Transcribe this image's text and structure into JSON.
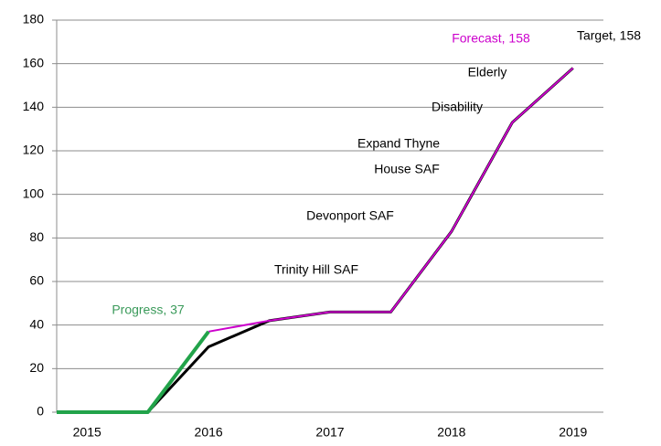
{
  "chart_data": {
    "type": "line",
    "x": [
      2014.75,
      2015.5,
      2016,
      2016.5,
      2017,
      2017.5,
      2018,
      2018.5,
      2019
    ],
    "series": [
      {
        "name": "Target",
        "color": "#000000",
        "values": [
          0,
          0,
          30,
          42,
          46,
          46,
          83,
          133,
          158
        ]
      },
      {
        "name": "Forecast",
        "color": "#cc00cc",
        "values": [
          null,
          null,
          37,
          42,
          46,
          46,
          83,
          133,
          158
        ]
      },
      {
        "name": "Progress",
        "color": "#22a34a",
        "values": [
          0,
          0,
          37,
          null,
          null,
          null,
          null,
          null,
          null
        ]
      }
    ],
    "xlim": [
      2014.75,
      2019.25
    ],
    "xticks": [
      2015,
      2016,
      2017,
      2018,
      2019
    ],
    "ylim": [
      0,
      180
    ],
    "yticks": [
      0,
      20,
      40,
      60,
      80,
      100,
      120,
      140,
      160,
      180
    ],
    "grid": true,
    "annotations": [
      {
        "text": "Forecast, 158",
        "color": "#cc00cc"
      },
      {
        "text": "Target, 158",
        "color": "#000000"
      },
      {
        "text": "Progress, 37",
        "color": "#3a9a5a"
      },
      {
        "text": "Elderly",
        "color": "#000000"
      },
      {
        "text": "Disability",
        "color": "#000000"
      },
      {
        "text": "Expand Thyne",
        "color": "#000000"
      },
      {
        "text": "House SAF",
        "color": "#000000"
      },
      {
        "text": "Devonport SAF",
        "color": "#000000"
      },
      {
        "text": "Trinity Hill SAF",
        "color": "#000000"
      }
    ]
  }
}
